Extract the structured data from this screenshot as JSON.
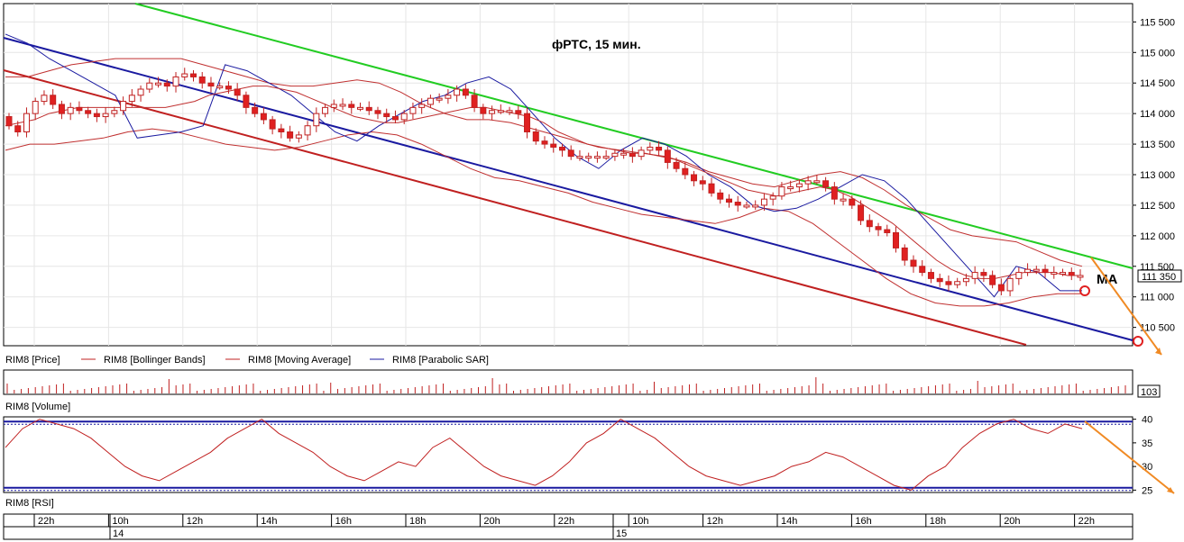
{
  "chart_data": {
    "type": "candlestick",
    "title": "фРТС, 15 мин.",
    "annotation": "MA",
    "price_axis": {
      "ticks": [
        "115 500",
        "115 000",
        "114 500",
        "114 000",
        "113 500",
        "113 000",
        "112 500",
        "112 000",
        "111 500",
        "111 000",
        "110 500"
      ],
      "values": [
        115500,
        115000,
        114500,
        114000,
        113500,
        113000,
        112500,
        112000,
        111500,
        111000,
        110500
      ],
      "ylim": [
        110200,
        115800
      ],
      "last_price": 111350,
      "last_price_label": "111 350"
    },
    "volume_axis": {
      "last_value_label": "103"
    },
    "rsi_axis": {
      "ticks": [
        "40",
        "35",
        "30",
        "25"
      ],
      "values": [
        40,
        35,
        30,
        25
      ],
      "ylim": [
        24.5,
        40.5
      ],
      "upper_level": 39.5,
      "lower_level": 25.5
    },
    "legend": {
      "price": "RIM8 [Price]",
      "bollinger": "RIM8 [Bollinger Bands]",
      "ma": "RIM8 [Moving Average]",
      "sar": "RIM8 [Parabolic SAR]"
    },
    "panel_labels": {
      "volume": "RIM8 [Volume]",
      "rsi": "RIM8 [RSI]"
    },
    "time_axis": {
      "labels": [
        "22h",
        "10h",
        "12h",
        "14h",
        "16h",
        "18h",
        "20h",
        "22h",
        "10h",
        "12h",
        "14h",
        "16h",
        "18h",
        "20h",
        "22h"
      ],
      "days": [
        "14",
        "15"
      ]
    },
    "trend_lines": {
      "green": [
        [
          0,
          116100
        ],
        [
          160,
          111450
        ]
      ],
      "blue": [
        [
          0,
          115300
        ],
        [
          160,
          110300
        ]
      ],
      "red": [
        [
          0,
          114800
        ],
        [
          145,
          110200
        ]
      ]
    },
    "candles_close": [
      113800,
      113700,
      114000,
      114200,
      114300,
      114150,
      114000,
      114100,
      114050,
      114000,
      113950,
      114000,
      114050,
      114200,
      114300,
      114400,
      114500,
      114500,
      114450,
      114600,
      114650,
      114600,
      114500,
      114450,
      114450,
      114400,
      114300,
      114100,
      114000,
      113900,
      113750,
      113700,
      113600,
      113650,
      113800,
      114000,
      114100,
      114150,
      114150,
      114100,
      114100,
      114050,
      114000,
      113950,
      113900,
      114000,
      114100,
      114150,
      114250,
      114250,
      114300,
      114400,
      114300,
      114100,
      114000,
      114050,
      114050,
      114050,
      114000,
      113700,
      113550,
      113500,
      113450,
      113400,
      113300,
      113300,
      113300,
      113300,
      113300,
      113350,
      113350,
      113300,
      113400,
      113450,
      113400,
      113200,
      113100,
      113000,
      112900,
      112850,
      112700,
      112600,
      112550,
      112500,
      112500,
      112500,
      112600,
      112650,
      112800,
      112800,
      112850,
      112900,
      112900,
      112800,
      112600,
      112600,
      112500,
      112250,
      112150,
      112100,
      112050,
      111800,
      111600,
      111500,
      111400,
      111300,
      111250,
      111200,
      111250,
      111300,
      111400,
      111350,
      111200,
      111100,
      111300,
      111400,
      111450,
      111450,
      111400,
      111400,
      111400,
      111350,
      111350
    ],
    "moving_average": [
      113800,
      113850,
      113900,
      114000,
      114050,
      114100,
      114100,
      114100,
      114100,
      114100,
      114100,
      114100,
      114150,
      114200,
      114300,
      114350,
      114400,
      114450,
      114450,
      114400,
      114350,
      114250,
      114150,
      114050,
      113950,
      113900,
      113850,
      113850,
      113900,
      113950,
      114000,
      114050,
      114100,
      114100,
      114050,
      114000,
      113950,
      113850,
      113700,
      113600,
      113500,
      113450,
      113400,
      113350,
      113350,
      113300,
      113250,
      113150,
      113050,
      112950,
      112850,
      112750,
      112700,
      112650,
      112700,
      112750,
      112800,
      112750,
      112650,
      112500,
      112350,
      112200,
      112000,
      111800,
      111600,
      111450,
      111350,
      111300,
      111300,
      111350,
      111400,
      111400,
      111400,
      111350,
      111350
    ],
    "bollinger_upper": [
      114600,
      114600,
      114700,
      114800,
      114850,
      114900,
      114900,
      114900,
      114900,
      114800,
      114700,
      114600,
      114500,
      114450,
      114450,
      114500,
      114550,
      114500,
      114350,
      114150,
      114000,
      113900,
      113900,
      113850,
      113750,
      113650,
      113550,
      113450,
      113400,
      113350,
      113300,
      113200,
      113050,
      112950,
      112850,
      112800,
      112900,
      113000,
      113050,
      112950,
      112750,
      112500,
      112300,
      112100,
      112000,
      111950,
      111900,
      111750,
      111600,
      111500
    ],
    "bollinger_lower": [
      113400,
      113500,
      113500,
      113550,
      113600,
      113700,
      113750,
      113700,
      113600,
      113500,
      113450,
      113400,
      113450,
      113550,
      113650,
      113700,
      113650,
      113500,
      113300,
      113100,
      112950,
      112900,
      112800,
      112700,
      112550,
      112450,
      112350,
      112300,
      112250,
      112200,
      112300,
      112450,
      112400,
      112200,
      111900,
      111600,
      111300,
      111050,
      110900,
      110850,
      110850,
      110900,
      111000,
      111050,
      111050
    ],
    "parabolic_sar": [
      115300,
      115150,
      114900,
      114700,
      114500,
      114300,
      113600,
      113650,
      113700,
      113800,
      114800,
      114700,
      114500,
      114300,
      114000,
      113700,
      113550,
      113800,
      114000,
      114200,
      114300,
      114500,
      114600,
      114400,
      114000,
      113600,
      113300,
      113100,
      113400,
      113600,
      113500,
      113300,
      113000,
      112800,
      112500,
      112400,
      112450,
      112600,
      112800,
      113000,
      112900,
      112600,
      112200,
      111800,
      111400,
      111000,
      111500,
      111400,
      111100,
      111100
    ],
    "rsi": [
      34,
      38,
      40,
      39,
      38,
      36,
      33,
      30,
      28,
      27,
      29,
      31,
      33,
      36,
      38,
      40,
      37,
      35,
      33,
      30,
      28,
      27,
      29,
      31,
      30,
      34,
      36,
      33,
      30,
      28,
      27,
      26,
      28,
      31,
      35,
      37,
      40,
      38,
      36,
      33,
      30,
      28,
      27,
      26,
      27,
      28,
      30,
      31,
      33,
      32,
      30,
      28,
      26,
      25,
      28,
      30,
      34,
      37,
      39,
      40,
      38,
      37,
      39,
      38
    ]
  }
}
